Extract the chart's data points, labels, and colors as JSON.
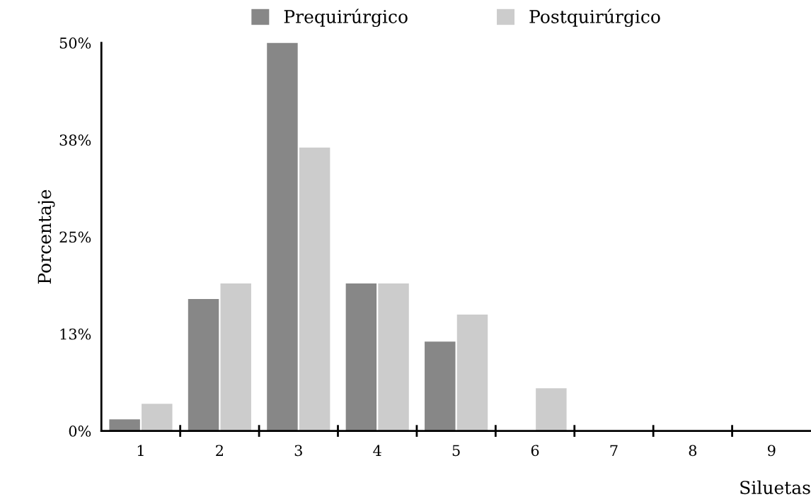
{
  "chart_data": {
    "type": "bar",
    "xlabel": "Siluetas",
    "ylabel": "Porcentaje",
    "categories": [
      "1",
      "2",
      "3",
      "4",
      "5",
      "6",
      "7",
      "8",
      "9"
    ],
    "series": [
      {
        "name": "Prequirúrgico",
        "color": "#878787",
        "values": [
          1.5,
          17,
          50,
          19,
          11.5,
          0,
          0,
          0,
          0
        ]
      },
      {
        "name": "Postquirúrgico",
        "color": "#cccccc",
        "values": [
          3.5,
          19,
          36.5,
          19,
          15,
          5.5,
          0,
          0,
          0
        ]
      }
    ],
    "ylim": [
      0,
      50
    ],
    "yticks": [
      {
        "value": 0,
        "label": "0%"
      },
      {
        "value": 12.5,
        "label": "13%"
      },
      {
        "value": 25,
        "label": "25%"
      },
      {
        "value": 37.5,
        "label": "38%"
      },
      {
        "value": 50,
        "label": "50%"
      }
    ],
    "grid": false,
    "legend": "top"
  }
}
